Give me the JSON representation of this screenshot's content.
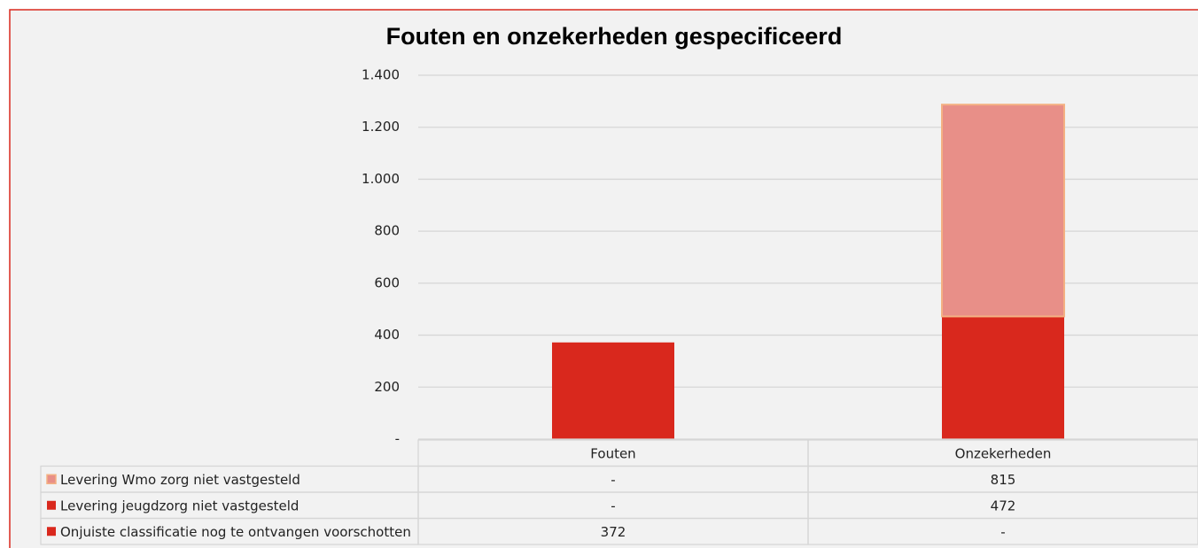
{
  "chart_data": {
    "type": "stacked_bar",
    "title": "Fouten en onzekerheden gespecificeerd",
    "categories": [
      "Fouten",
      "Onzekerheden"
    ],
    "series": [
      {
        "name": "Levering Wmo zorg niet vastgesteld",
        "color": "#e88f88",
        "values": [
          0,
          815
        ],
        "value_labels": [
          "-",
          "815"
        ]
      },
      {
        "name": "Levering jeugdzorg niet vastgesteld",
        "color": "#d9281d",
        "values": [
          0,
          472
        ],
        "value_labels": [
          "-",
          "472"
        ]
      },
      {
        "name": "Onjuiste classificatie nog te ontvangen voorschotten",
        "color": "#d9281d",
        "values": [
          372,
          0
        ],
        "value_labels": [
          "372",
          "-"
        ]
      }
    ],
    "ylim": [
      0,
      1400
    ],
    "yticks": [
      {
        "value": 0,
        "label": "-"
      },
      200,
      400,
      600,
      800,
      {
        "value": 1000,
        "label": "1.000"
      },
      {
        "value": 1200,
        "label": "1.200"
      },
      {
        "value": 1400,
        "label": "1.400"
      }
    ],
    "grid": true,
    "legend": "data-table"
  }
}
